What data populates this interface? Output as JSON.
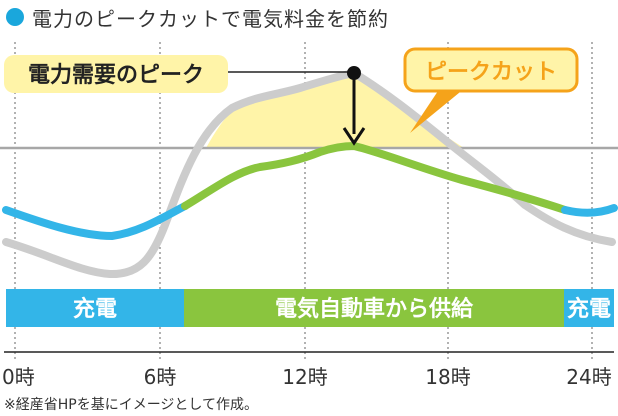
{
  "title": "電力のピークカットで電気料金を節約",
  "callouts": {
    "peak_demand": "電力需要のピーク",
    "peak_cut": "ピークカット"
  },
  "bands": {
    "charge_left": "充電",
    "supply": "電気自動車から供給",
    "charge_right": "充電"
  },
  "x_axis": {
    "ticks": [
      "0時",
      "6時",
      "12時",
      "18時",
      "24時"
    ]
  },
  "note": "※経産省HPを基にイメージとして作成。",
  "colors": {
    "title_dot": "#1aa7dc",
    "blue_line": "#33b5e8",
    "green_line": "#8ac53e",
    "gray_line": "#cccccc",
    "peak_fill": "#fff4a8",
    "callout_orange": "#f5a31a",
    "threshold": "#a7a7a7"
  }
}
